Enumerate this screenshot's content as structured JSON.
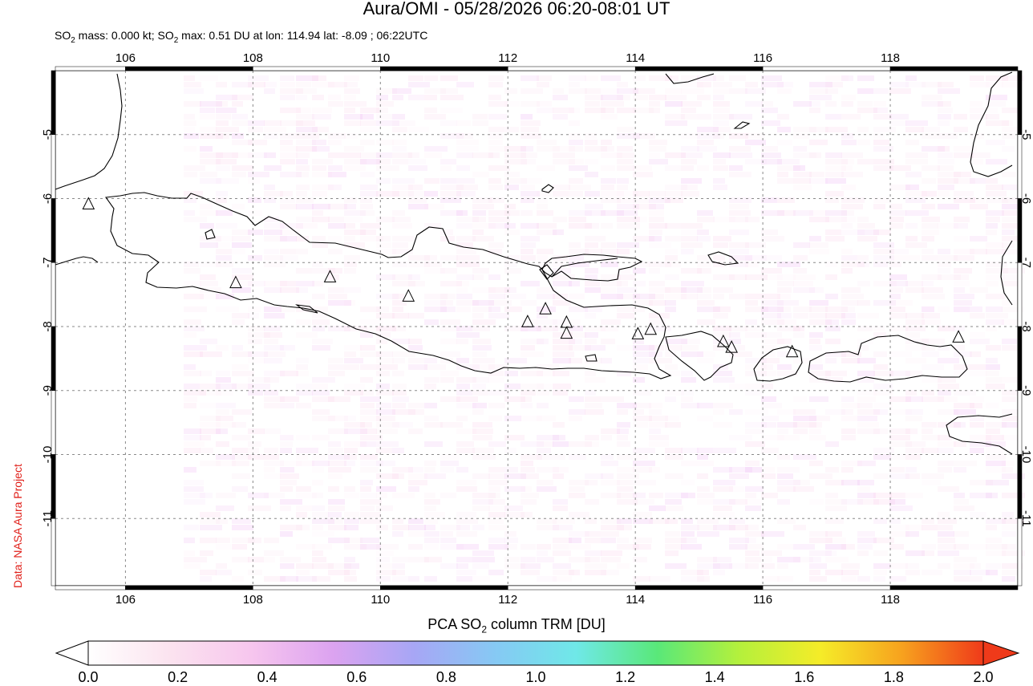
{
  "header": {
    "title": "Aura/OMI - 05/28/2026 06:20-08:01 UT",
    "subtitle_prefix": "SO",
    "subtitle_sub1": "2",
    "subtitle_mid": " mass: 0.000 kt; SO",
    "subtitle_sub2": "2",
    "subtitle_rest": " max: 0.51 DU at lon: 114.94 lat: -8.09 ; 06:22UTC"
  },
  "credit": "Data: NASA Aura Project",
  "map": {
    "lon_range": [
      104.9,
      120.0
    ],
    "lat_range": [
      -12.05,
      -4.0
    ],
    "lon_ticks": [
      "106",
      "108",
      "110",
      "112",
      "114",
      "116",
      "118"
    ],
    "lat_ticks": [
      "-5",
      "-6",
      "-7",
      "-8",
      "-9",
      "-10",
      "-11"
    ],
    "grid": "dashed",
    "volcanoes": [
      {
        "lon": 105.42,
        "lat": -6.1
      },
      {
        "lon": 107.73,
        "lat": -7.33
      },
      {
        "lon": 109.21,
        "lat": -7.24
      },
      {
        "lon": 110.44,
        "lat": -7.54
      },
      {
        "lon": 112.31,
        "lat": -7.94
      },
      {
        "lon": 112.59,
        "lat": -7.74
      },
      {
        "lon": 112.92,
        "lat": -7.95
      },
      {
        "lon": 112.92,
        "lat": -8.12
      },
      {
        "lon": 114.04,
        "lat": -8.13
      },
      {
        "lon": 114.24,
        "lat": -8.06
      },
      {
        "lon": 115.38,
        "lat": -8.25
      },
      {
        "lon": 115.51,
        "lat": -8.34
      },
      {
        "lon": 116.46,
        "lat": -8.41
      },
      {
        "lon": 119.07,
        "lat": -8.18
      }
    ]
  },
  "colorbar": {
    "title_prefix": "PCA SO",
    "title_sub": "2",
    "title_suffix": " column TRM [DU]",
    "ticks": [
      "0.0",
      "0.2",
      "0.4",
      "0.6",
      "0.8",
      "1.0",
      "1.2",
      "1.4",
      "1.6",
      "1.8",
      "2.0"
    ],
    "colors": [
      "#ffffff",
      "#fbe3ef",
      "#f7c6ee",
      "#dca3f0",
      "#a7a6f5",
      "#86c9f4",
      "#6fe8e8",
      "#59e879",
      "#b4f03c",
      "#f5ec28",
      "#f7a21e",
      "#ef3a1a"
    ]
  }
}
